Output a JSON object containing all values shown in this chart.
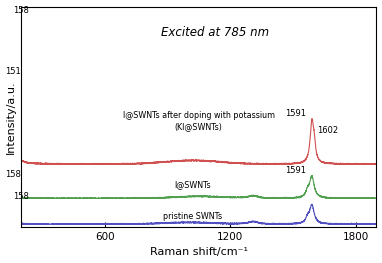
{
  "title": "Excited at 785 nm",
  "xlabel": "Raman shift/cm⁻¹",
  "ylabel": "Intensity/a.u.",
  "xlim": [
    200,
    1900
  ],
  "bg_color": "#ffffff",
  "labels": {
    "red": "I@SWNTs after doping with potassium\n(KI@SWNTs)",
    "green": "I@SWNTs",
    "blue": "pristine SWNTs"
  },
  "line_colors": {
    "red": "#d05050",
    "green": "#50a050",
    "blue": "#5050c0"
  },
  "offsets": {
    "blue": 0.0,
    "green": 0.18,
    "red": 0.42
  },
  "scale": {
    "blue_rbm": 0.14,
    "blue_g": 0.13,
    "green_rbm": 0.14,
    "green_g": 0.15,
    "red_rbm": 0.95,
    "red_g": 0.28,
    "red_g2": 0.1
  }
}
